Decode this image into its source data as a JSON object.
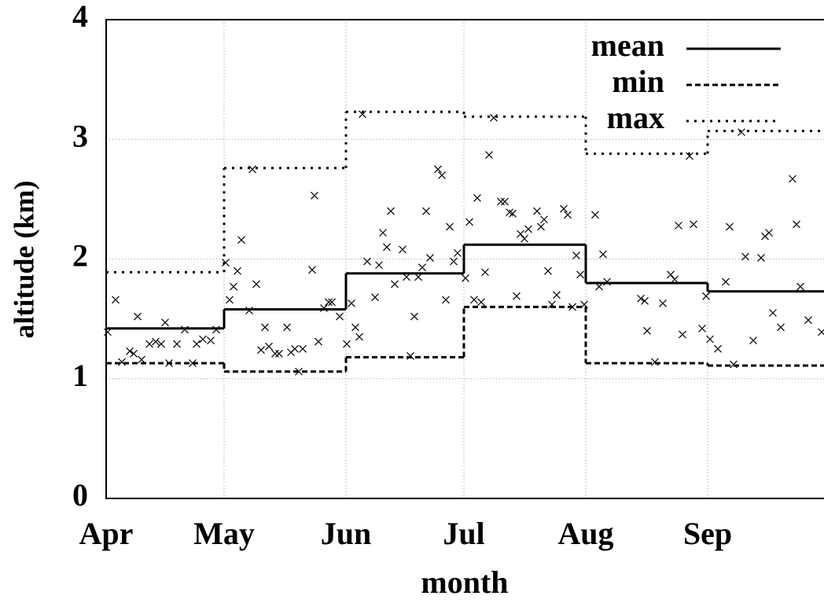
{
  "chart_data": {
    "type": "combo",
    "x_label": "month",
    "y_label": "altitude (km)",
    "xlim": [
      0,
      183
    ],
    "ylim": [
      0,
      4
    ],
    "xticks": [
      {
        "value": 0,
        "label": "Apr"
      },
      {
        "value": 30,
        "label": "May"
      },
      {
        "value": 61,
        "label": "Jun"
      },
      {
        "value": 91,
        "label": "Jul"
      },
      {
        "value": 122,
        "label": "Aug"
      },
      {
        "value": 153,
        "label": "Sep"
      }
    ],
    "yticks": [
      0,
      1,
      2,
      3,
      4
    ],
    "grid": true,
    "legend": "top right",
    "series": [
      {
        "type": "scatter",
        "color": "#000000",
        "x": [
          0.4,
          2.4,
          4,
          6,
          7,
          8,
          9,
          11,
          12.6,
          14,
          15,
          16,
          18,
          20,
          22,
          23,
          24.6,
          26.6,
          28,
          30.4,
          31.4,
          32.4,
          33.4,
          34.4,
          36.4,
          37.2,
          38.2,
          39.4,
          40.4,
          41.4,
          43,
          44,
          46,
          47,
          48,
          49,
          50,
          52.4,
          53,
          54,
          55.4,
          56.6,
          57.4,
          59.4,
          61.2,
          62.4,
          63.4,
          64.4,
          65.2,
          66.4,
          68.4,
          69.4,
          70.4,
          71.4,
          72.4,
          73.4,
          75.4,
          76.4,
          77.4,
          78.4,
          79.4,
          80.4,
          81.4,
          82.4,
          84.4,
          85.4,
          86.4,
          87.4,
          88.4,
          89.4,
          91.4,
          92.4,
          93.6,
          94.4,
          95.4,
          96.4,
          97.4,
          98.6,
          100.4,
          101.4,
          102.6,
          103.4,
          104.4,
          105.4,
          106.4,
          107.4,
          109.6,
          110.6,
          111.4,
          112.4,
          113.4,
          114.6,
          116.4,
          117.4,
          118.6,
          119.6,
          120.6,
          121.6,
          124.4,
          125.4,
          126.4,
          127.4,
          136,
          137,
          137.6,
          139.6,
          141.6,
          143.6,
          144.6,
          145.6,
          146.6,
          148.4,
          149.4,
          151.6,
          152.6,
          153.6,
          155.6,
          157.6,
          158.6,
          159.6,
          161.6,
          162.6,
          164.6,
          166.6,
          167.6,
          168.6,
          169.6,
          171.6,
          174.6,
          175.6,
          176.6,
          178.6,
          182
        ],
        "values": [
          1.39,
          1.66,
          1.14,
          1.23,
          1.21,
          1.52,
          1.16,
          1.29,
          1.31,
          1.29,
          1.47,
          1.13,
          1.29,
          1.41,
          1.13,
          1.29,
          1.33,
          1.32,
          1.41,
          1.97,
          1.66,
          1.77,
          1.9,
          2.16,
          1.57,
          2.75,
          1.79,
          1.24,
          1.43,
          1.27,
          1.21,
          1.21,
          1.43,
          1.22,
          1.25,
          1.06,
          1.25,
          1.91,
          2.53,
          1.31,
          1.59,
          1.64,
          1.64,
          1.52,
          1.29,
          1.63,
          1.43,
          1.35,
          3.21,
          1.98,
          1.68,
          1.95,
          2.22,
          2.1,
          2.4,
          1.79,
          2.08,
          1.85,
          1.19,
          1.52,
          1.85,
          1.93,
          2.4,
          2.01,
          2.75,
          2.7,
          1.66,
          2.27,
          1.98,
          2.05,
          1.84,
          2.31,
          1.66,
          2.51,
          1.64,
          1.89,
          2.87,
          3.18,
          2.48,
          2.48,
          2.39,
          2.38,
          1.69,
          2.21,
          2.17,
          2.25,
          2.4,
          2.27,
          2.33,
          1.9,
          1.62,
          1.7,
          2.42,
          2.37,
          1.6,
          2.03,
          1.87,
          1.62,
          2.37,
          1.77,
          2.04,
          1.81,
          1.67,
          1.65,
          1.4,
          1.14,
          1.63,
          1.87,
          1.83,
          2.28,
          1.37,
          2.86,
          2.29,
          1.42,
          1.69,
          1.33,
          1.25,
          1.81,
          2.27,
          1.12,
          3.06,
          2.02,
          1.32,
          2.01,
          2.19,
          2.22,
          1.55,
          1.43,
          2.67,
          2.29,
          1.77,
          1.49,
          1.39
        ]
      },
      {
        "type": "step",
        "name": "mean",
        "color": "#000000",
        "style": "solid",
        "x": [
          0,
          30,
          61,
          91,
          122,
          153
        ],
        "values": [
          1.42,
          1.58,
          1.88,
          2.12,
          1.8,
          1.73
        ]
      },
      {
        "type": "step",
        "name": "min",
        "color": "#000000",
        "style": "dashed",
        "x": [
          0,
          30,
          61,
          91,
          122,
          153
        ],
        "values": [
          1.13,
          1.06,
          1.18,
          1.6,
          1.13,
          1.11
        ]
      },
      {
        "type": "step",
        "name": "max",
        "color": "#000000",
        "style": "dotted",
        "x": [
          0,
          30,
          61,
          91,
          122,
          153
        ],
        "values": [
          1.89,
          2.76,
          3.23,
          3.19,
          2.88,
          3.07
        ]
      }
    ]
  }
}
